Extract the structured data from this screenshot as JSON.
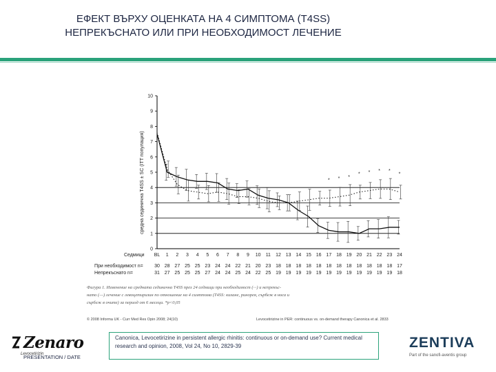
{
  "slide": {
    "title_line1": "ЕФЕКТ ВЪРХУ ОЦЕНКАТА НА 4 СИМПТОМА (T4SS)",
    "title_line2": "НЕПРЕКЪСНАТО ИЛИ ПРИ НЕОБХОДИМОСТ ЛЕЧЕНИЕ",
    "citation": "Canonica, Levocetirizine in persistent allergic rhinitis: continuous or on-demand use? Current medical research and opinion, 2008, Vol 24, No 10, 2829-39",
    "footer_left": "PRESENTATION / DATE",
    "logo_left_text": "Zenaro",
    "logo_left_sub": "Levocetirizin",
    "logo_right_text": "ZENTIVA",
    "logo_right_sub": "Part of the sanofi-aventis group",
    "accent_color": "#2aa27a",
    "title_color": "#1c2541"
  },
  "chart_data": {
    "type": "line",
    "ylabel": "средна сединична T4SS ± SC (ITT популация)",
    "ylim": [
      0,
      10
    ],
    "yticks": [
      0,
      1,
      2,
      3,
      4,
      5,
      6,
      7,
      8,
      9,
      10
    ],
    "row_label_weeks": "Седмици",
    "row_label_ondemand": "При необходимост n=",
    "row_label_continuous": "Непрекъснато n=",
    "categories": [
      "BL",
      "1",
      "2",
      "3",
      "4",
      "5",
      "6",
      "7",
      "8",
      "9",
      "10",
      "11",
      "12",
      "13",
      "14",
      "15",
      "16",
      "17",
      "18",
      "19",
      "20",
      "21",
      "22",
      "23",
      "24"
    ],
    "ondemand_n": [
      "30",
      "28",
      "27",
      "25",
      "25",
      "23",
      "24",
      "24",
      "22",
      "21",
      "20",
      "23",
      "18",
      "18",
      "18",
      "18",
      "18",
      "18",
      "18",
      "18",
      "18",
      "18",
      "18",
      "18",
      "17"
    ],
    "continuous_n": [
      "31",
      "27",
      "25",
      "25",
      "25",
      "27",
      "24",
      "24",
      "25",
      "24",
      "22",
      "25",
      "19",
      "19",
      "19",
      "19",
      "19",
      "19",
      "19",
      "19",
      "19",
      "19",
      "19",
      "19",
      "18"
    ],
    "series": [
      {
        "style": "solid",
        "values": [
          7.5,
          5.0,
          4.7,
          4.5,
          4.4,
          4.4,
          4.3,
          3.9,
          3.8,
          3.9,
          3.5,
          3.3,
          3.2,
          3.0,
          2.5,
          2.1,
          1.5,
          1.2,
          1.1,
          1.1,
          1.0,
          1.3,
          1.3,
          1.4,
          1.4
        ]
      },
      {
        "style": "dotted",
        "values": [
          7.6,
          5.2,
          4.2,
          3.8,
          3.7,
          3.6,
          3.7,
          3.6,
          3.4,
          3.4,
          3.3,
          3.1,
          3.0,
          3.0,
          3.1,
          3.2,
          3.3,
          3.3,
          3.4,
          3.5,
          3.7,
          3.8,
          3.9,
          3.9,
          3.7
        ]
      }
    ],
    "significance_marker": "*",
    "caption_line1": "Фигура 1. Изменение на средната сединична T4SS през 24 седмици при необходимост (···) и непрекъс-",
    "caption_line2": "нато (—) лечение с левоцетиризин по отношение на 4 симптома (T4SS: кихане, ринорея, сърбеж в носа и",
    "caption_line3": "сърбеж в очите) за период от 6 месеца. *p<0,05",
    "copyright": "© 2008 Informa UK - Curr Med Res Opin 2008; 24(10)",
    "source_note": "Levocetirizine in PER: continuous vs. on-demand therapy  Canonica et al.  2833"
  }
}
